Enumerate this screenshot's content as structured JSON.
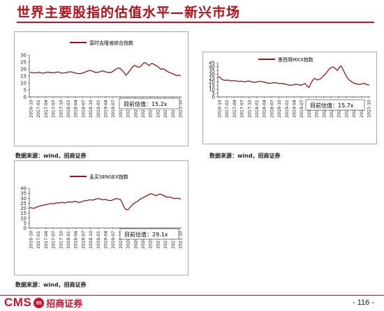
{
  "page": {
    "title": "世界主要股指的估值水平—新兴市场",
    "page_number": "- 116 -",
    "logo_text": "CMS",
    "logo_mark": "m",
    "logo_cn": "招商证券",
    "accent_color": "#c8102e",
    "line_color": "#8b1a1a"
  },
  "sources": [
    "数据来源：wind，招商证券",
    "数据来源：wind，招商证券",
    "数据来源：wind，招商证券"
  ],
  "chart_data": [
    {
      "type": "line",
      "legend": "富时吉隆坡综合指数",
      "annotation": "目前估值：15.2x",
      "ylim": [
        0,
        30
      ],
      "yticks": [
        0,
        5,
        10,
        15,
        20,
        25,
        30
      ],
      "x_ticks": [
        "2016-10",
        "2017-01",
        "2017-04",
        "2017-07",
        "2017-10",
        "2018-01",
        "2018-04",
        "2018-07",
        "2018-10",
        "2019-01",
        "2019-04",
        "2019-07",
        "2019-10",
        "2020-01",
        "2020-04",
        "2020-07",
        "2020-10",
        "2021-01",
        "2021-04",
        "2021-07",
        "2021-10"
      ],
      "values": [
        17.6,
        17.5,
        17.3,
        17.2,
        17.5,
        17.7,
        17.3,
        17.1,
        17.2,
        17.5,
        17.8,
        17.6,
        17.4,
        17.2,
        17.5,
        17.7,
        17.9,
        17.4,
        17.0,
        17.2,
        17.3,
        17.6,
        17.9,
        18.0,
        17.7,
        17.3,
        17.0,
        16.8,
        16.7,
        16.9,
        17.2,
        17.8,
        18.3,
        18.8,
        19.0,
        18.6,
        18.0,
        17.6,
        17.6,
        17.9,
        18.4,
        18.7,
        18.2,
        17.9,
        17.6,
        17.4,
        17.8,
        18.6,
        19.6,
        20.3,
        20.8,
        20.2,
        19.0,
        17.5,
        15.6,
        16.7,
        18.6,
        20.2,
        21.8,
        22.6,
        22.0,
        21.2,
        21.6,
        22.8,
        24.2,
        24.6,
        23.6,
        22.4,
        23.6,
        24.0,
        23.2,
        22.5,
        21.8,
        20.5,
        19.8,
        20.2,
        19.6,
        18.6,
        17.8,
        17.4,
        16.8,
        16.3,
        15.7,
        15.2,
        15.6,
        15.2
      ]
    },
    {
      "type": "line",
      "legend": "墨西哥MXX指数",
      "annotation": "目前估值：15.7x",
      "ylim": [
        0,
        45
      ],
      "yticks": [
        0,
        5,
        10,
        15,
        20,
        25,
        30,
        35,
        40,
        45
      ],
      "x_ticks": [
        "2016-10",
        "2017-01",
        "2017-04",
        "2017-07",
        "2017-10",
        "2018-01",
        "2018-04",
        "2018-07",
        "2018-10",
        "2019-01",
        "2019-04",
        "2019-07",
        "2019-10",
        "2020-01",
        "2020-04",
        "2020-07",
        "2020-10",
        "2021-01",
        "2021-04",
        "2021-07",
        "2021-10"
      ],
      "values": [
        26.5,
        25.0,
        23.0,
        22.0,
        21.8,
        22.2,
        21.5,
        21.0,
        21.5,
        21.2,
        20.8,
        20.5,
        20.8,
        20.3,
        19.8,
        20.6,
        20.9,
        20.3,
        19.5,
        19.2,
        19.5,
        20.1,
        20.7,
        20.2,
        19.5,
        19.0,
        18.2,
        17.8,
        18.1,
        18.6,
        18.8,
        18.3,
        17.8,
        17.5,
        17.6,
        17.2,
        16.5,
        15.8,
        15.3,
        15.6,
        16.2,
        16.8,
        16.3,
        15.8,
        15.4,
        16.8,
        17.6,
        14.2,
        12.4,
        18.2,
        22.0,
        24.5,
        23.0,
        22.6,
        23.8,
        26.0,
        28.5,
        31.0,
        34.5,
        37.5,
        39.0,
        39.5,
        37.2,
        35.0,
        38.5,
        41.0,
        36.2,
        31.0,
        26.5,
        23.0,
        21.0,
        19.5,
        18.0,
        17.2,
        16.8,
        16.5,
        17.2,
        18.0,
        17.0,
        16.0,
        15.7
      ]
    },
    {
      "type": "line",
      "legend": "孟买SENSEX指数",
      "annotation": "目前估值：29.1x",
      "ylim": [
        0,
        40
      ],
      "yticks": [
        0,
        5,
        10,
        15,
        20,
        25,
        30,
        35,
        40
      ],
      "x_ticks": [
        "2016-10",
        "2017-01",
        "2017-04",
        "2017-07",
        "2017-10",
        "2018-01",
        "2018-04",
        "2018-07",
        "2018-10",
        "2019-01",
        "2019-04",
        "2019-07",
        "2019-10",
        "2020-01",
        "2020-04",
        "2020-07",
        "2020-10",
        "2021-01",
        "2021-04",
        "2021-07",
        "2021-10"
      ],
      "values": [
        20.6,
        20.2,
        19.8,
        20.6,
        21.4,
        22.0,
        22.6,
        23.0,
        23.3,
        23.7,
        24.2,
        24.6,
        24.3,
        24.8,
        25.4,
        25.2,
        25.6,
        25.9,
        25.3,
        25.5,
        26.1,
        26.3,
        25.9,
        26.6,
        26.9,
        26.3,
        25.6,
        26.2,
        27.1,
        27.4,
        27.6,
        28.1,
        28.4,
        28.0,
        28.6,
        29.1,
        29.6,
        29.3,
        28.7,
        28.4,
        28.9,
        28.1,
        27.7,
        27.6,
        28.4,
        29.1,
        29.6,
        29.1,
        28.6,
        25.0,
        20.5,
        18.6,
        18.3,
        20.6,
        22.8,
        24.6,
        25.8,
        26.9,
        28.4,
        29.6,
        30.6,
        31.6,
        32.6,
        33.6,
        34.4,
        34.2,
        33.2,
        32.6,
        33.6,
        34.1,
        33.6,
        32.6,
        31.6,
        30.9,
        31.4,
        30.6,
        29.9,
        29.6,
        30.1,
        29.6,
        29.1
      ]
    }
  ]
}
